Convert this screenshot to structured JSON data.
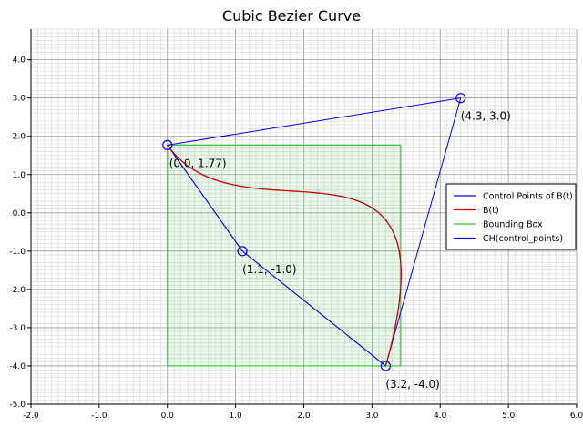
{
  "chart_data": {
    "type": "line",
    "title": "Cubic Bezier Curve",
    "xlabel": "",
    "ylabel": "",
    "xlim": [
      -2.0,
      6.0
    ],
    "ylim": [
      -5.0,
      4.8
    ],
    "x_ticks": [
      -2.0,
      -1.0,
      0.0,
      1.0,
      2.0,
      3.0,
      4.0,
      5.0,
      6.0
    ],
    "y_ticks": [
      -5.0,
      -4.0,
      -3.0,
      -2.0,
      -1.0,
      0.0,
      1.0,
      2.0,
      3.0,
      4.0
    ],
    "x_tick_labels": [
      "-2.0",
      "-1.0",
      "0.0",
      "1.0",
      "2.0",
      "3.0",
      "4.0",
      "5.0",
      "6.0"
    ],
    "y_tick_labels": [
      "-5.0",
      "-4.0",
      "-3.0",
      "-2.0",
      "-1.0",
      "0.0",
      "1.0",
      "2.0",
      "3.0",
      "4.0"
    ],
    "grid": true,
    "legend_position": "right",
    "control_points": [
      {
        "x": 0.0,
        "y": 1.77,
        "label": "(0.0, 1.77)"
      },
      {
        "x": 1.1,
        "y": -1.0,
        "label": "(1.1, -1.0)"
      },
      {
        "x": 4.3,
        "y": 3.0,
        "label": "(4.3, 3.0)"
      },
      {
        "x": 3.2,
        "y": -4.0,
        "label": "(3.2, -4.0)"
      }
    ],
    "series": [
      {
        "name": "Control Points of B(t)",
        "color": "#0000ff",
        "kind": "control_polygon"
      },
      {
        "name": "B(t)",
        "color": "#cc0000",
        "kind": "bezier_curve"
      },
      {
        "name": "Bounding Box",
        "color": "#33cc33",
        "kind": "bounding_box",
        "x": [
          0.0,
          3.42
        ],
        "y": [
          -4.0,
          1.77
        ]
      },
      {
        "name": "CH(control_points)",
        "color": "#0000ff",
        "kind": "convex_hull",
        "hull_order": [
          0,
          2,
          3,
          1
        ]
      }
    ]
  }
}
